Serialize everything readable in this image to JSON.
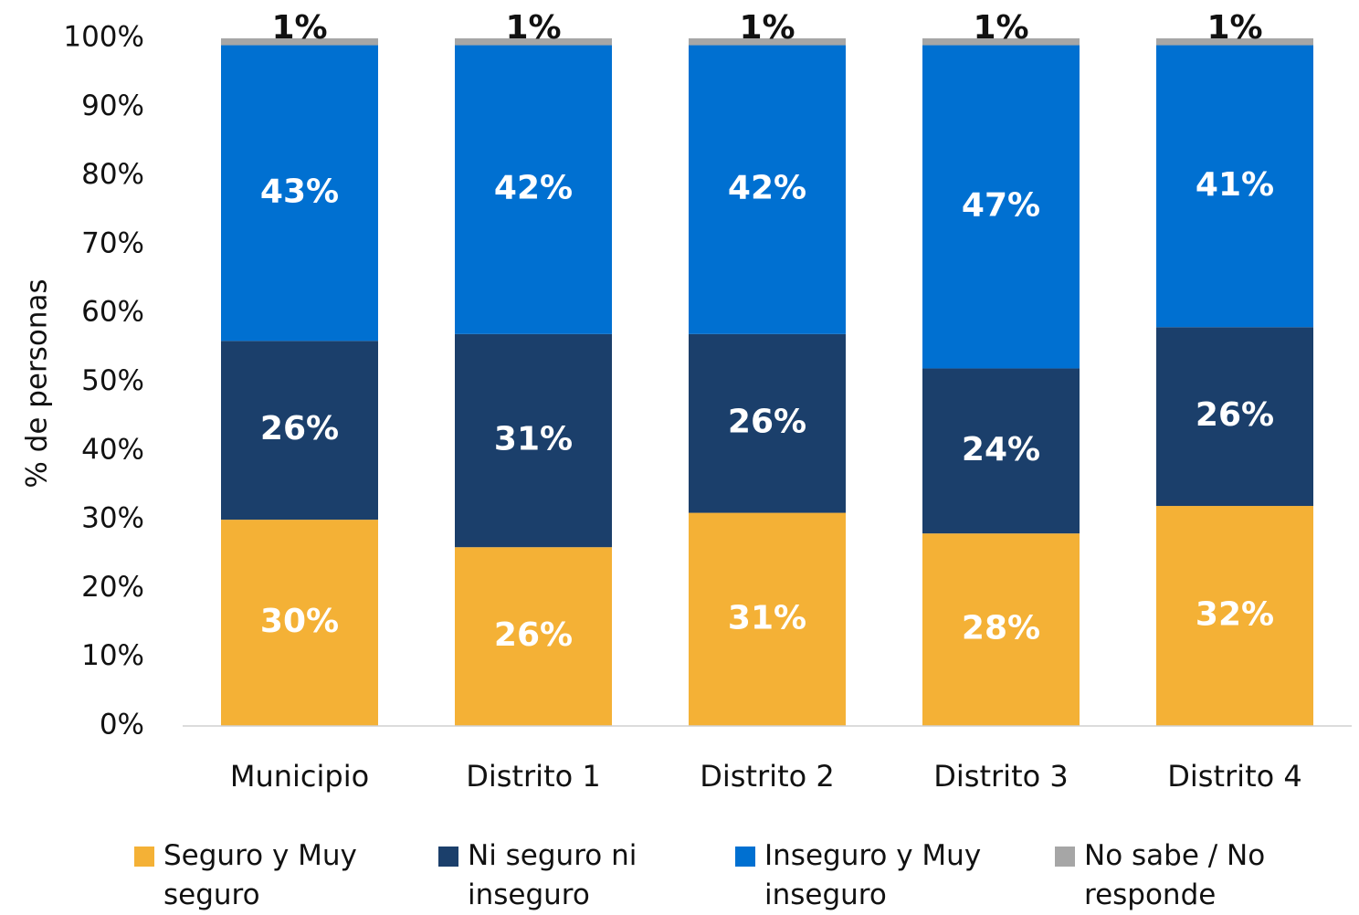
{
  "chart_data": {
    "type": "stacked_bar",
    "categories": [
      "Municipio",
      "Distrito 1",
      "Distrito 2",
      "Distrito 3",
      "Distrito 4"
    ],
    "series": [
      {
        "name": "Seguro y Muy seguro",
        "color": "#f4b136",
        "values": [
          30,
          26,
          31,
          28,
          32
        ],
        "value_labels": [
          "30%",
          "26%",
          "31%",
          "28%",
          "32%"
        ]
      },
      {
        "name": "Ni seguro ni inseguro",
        "color": "#1b3f6b",
        "values": [
          26,
          31,
          26,
          24,
          26
        ],
        "value_labels": [
          "26%",
          "31%",
          "26%",
          "24%",
          "26%"
        ]
      },
      {
        "name": "Inseguro y Muy inseguro",
        "color": "#0070d1",
        "values": [
          43,
          42,
          42,
          47,
          41
        ],
        "value_labels": [
          "43%",
          "42%",
          "42%",
          "47%",
          "41%"
        ]
      },
      {
        "name": "No sabe / No responde",
        "color": "#a6a6a6",
        "values": [
          1,
          1,
          1,
          1,
          1
        ],
        "value_labels": [
          "1%",
          "1%",
          "1%",
          "1%",
          "1%"
        ]
      }
    ],
    "y_label": "% de personas",
    "ylim": [
      0,
      100
    ],
    "yticks": [
      {
        "value": 0,
        "label": "0%"
      },
      {
        "value": 10,
        "label": "10%"
      },
      {
        "value": 20,
        "label": "20%"
      },
      {
        "value": 30,
        "label": "30%"
      },
      {
        "value": 40,
        "label": "40%"
      },
      {
        "value": 50,
        "label": "50%"
      },
      {
        "value": 60,
        "label": "60%"
      },
      {
        "value": 70,
        "label": "70%"
      },
      {
        "value": 80,
        "label": "80%"
      },
      {
        "value": 90,
        "label": "90%"
      },
      {
        "value": 100,
        "label": "100%"
      }
    ],
    "grid": false,
    "legend": "bottom"
  }
}
